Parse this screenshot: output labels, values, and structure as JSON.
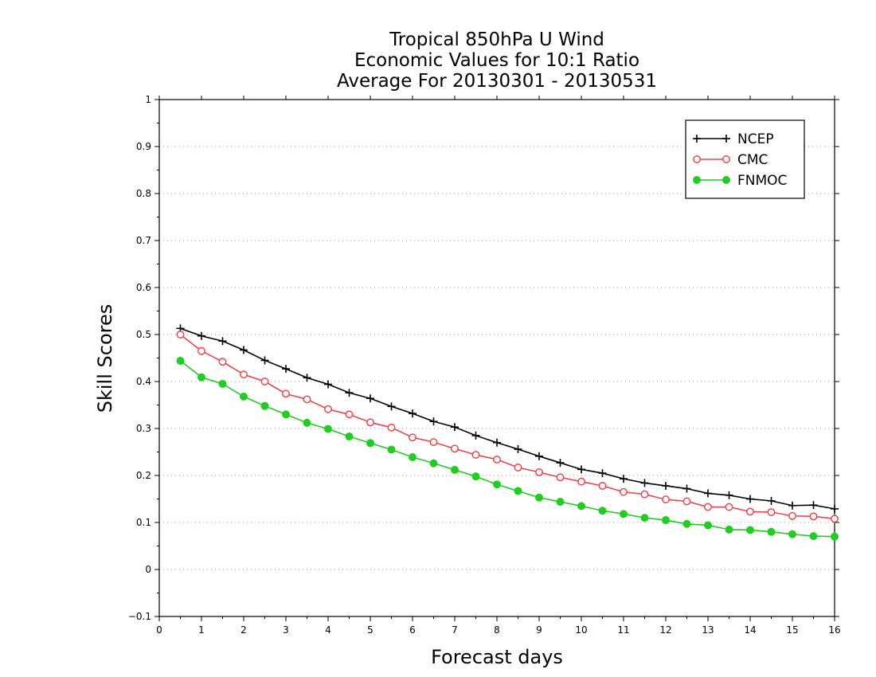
{
  "chart_data": {
    "type": "line",
    "title_lines": [
      "Tropical 850hPa U Wind",
      "Economic Values for 10:1 Ratio",
      "Average For 20130301 - 20130531"
    ],
    "xlabel": "Forecast days",
    "ylabel": "Skill Scores",
    "xlim": [
      0,
      16
    ],
    "ylim": [
      -0.1,
      1
    ],
    "xticks": [
      0,
      1,
      2,
      3,
      4,
      5,
      6,
      7,
      8,
      9,
      10,
      11,
      12,
      13,
      14,
      15,
      16
    ],
    "xtick_labels": [
      "0",
      "1",
      "2",
      "3",
      "4",
      "5",
      "6",
      "7",
      "8",
      "9",
      "10",
      "11",
      "12",
      "13",
      "14",
      "15",
      "16"
    ],
    "yticks": [
      -0.1,
      0,
      0.1,
      0.2,
      0.3,
      0.4,
      0.5,
      0.6,
      0.7,
      0.8,
      0.9,
      1
    ],
    "ytick_labels": [
      "−0.1",
      "0",
      "0.1",
      "0.2",
      "0.3",
      "0.4",
      "0.5",
      "0.6",
      "0.7",
      "0.8",
      "0.9",
      "1"
    ],
    "grid": true,
    "legend_position": "top-right",
    "x": [
      0.5,
      1,
      1.5,
      2,
      2.5,
      3,
      3.5,
      4,
      4.5,
      5,
      5.5,
      6,
      6.5,
      7,
      7.5,
      8,
      8.5,
      9,
      9.5,
      10,
      10.5,
      11,
      11.5,
      12,
      12.5,
      13,
      13.5,
      14,
      14.5,
      15,
      15.5,
      16
    ],
    "series": [
      {
        "name": "NCEP",
        "color": "#000000",
        "marker": "plus",
        "values": [
          0.513,
          0.497,
          0.486,
          0.467,
          0.445,
          0.427,
          0.408,
          0.394,
          0.376,
          0.364,
          0.347,
          0.332,
          0.315,
          0.303,
          0.285,
          0.27,
          0.256,
          0.241,
          0.227,
          0.213,
          0.205,
          0.193,
          0.184,
          0.178,
          0.172,
          0.162,
          0.158,
          0.15,
          0.146,
          0.136,
          0.137,
          0.129
        ]
      },
      {
        "name": "CMC",
        "color": "#e8474f",
        "marker": "open-circle",
        "values": [
          0.5,
          0.465,
          0.442,
          0.415,
          0.4,
          0.374,
          0.362,
          0.341,
          0.33,
          0.313,
          0.302,
          0.281,
          0.271,
          0.257,
          0.244,
          0.234,
          0.217,
          0.207,
          0.196,
          0.187,
          0.178,
          0.165,
          0.16,
          0.149,
          0.145,
          0.133,
          0.133,
          0.123,
          0.122,
          0.114,
          0.113,
          0.108
        ]
      },
      {
        "name": "FNMOC",
        "color": "#22cc22",
        "marker": "filled-circle",
        "values": [
          0.444,
          0.409,
          0.395,
          0.368,
          0.348,
          0.33,
          0.312,
          0.299,
          0.283,
          0.269,
          0.255,
          0.239,
          0.226,
          0.212,
          0.198,
          0.181,
          0.167,
          0.153,
          0.144,
          0.135,
          0.125,
          0.118,
          0.11,
          0.105,
          0.097,
          0.094,
          0.085,
          0.084,
          0.08,
          0.075,
          0.071,
          0.07
        ]
      }
    ]
  }
}
